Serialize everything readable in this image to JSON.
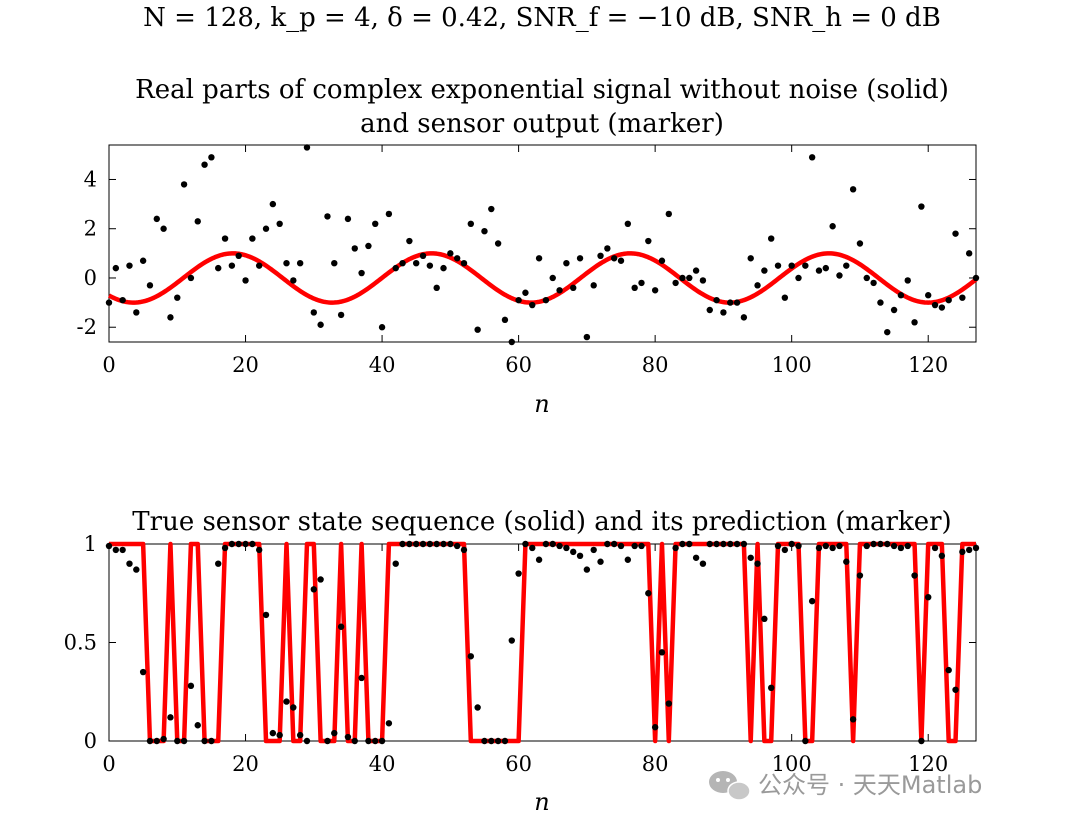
{
  "suptitle": "N = 128, k_p = 4, δ = 0.42, SNR_f = −10 dB, SNR_h = 0 dB",
  "watermark": "公众号 · 天天Matlab",
  "colors": {
    "line": "#ff0000",
    "marker": "#000000",
    "axes": "#000000"
  },
  "chart_data": [
    {
      "type": "line",
      "title_line1": "Real parts of complex exponential signal without noise (solid)",
      "title_line2": "and sensor output (marker)",
      "xlabel": "n",
      "ylabel": "",
      "xlim": [
        0,
        127
      ],
      "ylim": [
        -2.6,
        5.4
      ],
      "xticks": [
        "0",
        "20",
        "40",
        "60",
        "80",
        "100",
        "120"
      ],
      "yticks": [
        "-2",
        "0",
        "2",
        "4"
      ],
      "grid": false,
      "series": [
        {
          "style": "solid",
          "formula_params": {
            "amplitude": 1,
            "period": 29.1,
            "phase_offset_n": 3.6
          }
        },
        {
          "style": "marker",
          "x": [
            0,
            1,
            2,
            3,
            4,
            5,
            6,
            7,
            8,
            9,
            10,
            11,
            12,
            13,
            14,
            15,
            16,
            17,
            18,
            19,
            20,
            21,
            22,
            23,
            24,
            25,
            26,
            27,
            28,
            29,
            30,
            31,
            32,
            33,
            34,
            35,
            36,
            37,
            38,
            39,
            40,
            41,
            42,
            43,
            44,
            45,
            46,
            47,
            48,
            49,
            50,
            51,
            52,
            53,
            54,
            55,
            56,
            57,
            58,
            59,
            60,
            61,
            62,
            63,
            64,
            65,
            66,
            67,
            68,
            69,
            70,
            71,
            72,
            73,
            74,
            75,
            76,
            77,
            78,
            79,
            80,
            81,
            82,
            83,
            84,
            85,
            86,
            87,
            88,
            89,
            90,
            91,
            92,
            93,
            94,
            95,
            96,
            97,
            98,
            99,
            100,
            101,
            102,
            103,
            104,
            105,
            106,
            107,
            108,
            109,
            110,
            111,
            112,
            113,
            114,
            115,
            116,
            117,
            118,
            119,
            120,
            121,
            122,
            123,
            124,
            125,
            126,
            127
          ],
          "y": [
            -1.0,
            0.4,
            -0.9,
            0.5,
            -1.4,
            0.7,
            -0.3,
            2.4,
            2.0,
            -1.6,
            -0.8,
            3.8,
            0.0,
            2.3,
            4.6,
            4.9,
            0.4,
            1.6,
            0.5,
            0.9,
            -0.1,
            1.6,
            0.5,
            2.0,
            3.0,
            2.2,
            0.6,
            -0.1,
            0.6,
            5.3,
            -1.4,
            -1.9,
            2.5,
            0.6,
            -1.5,
            2.4,
            1.2,
            0.2,
            1.3,
            2.2,
            -2.0,
            2.6,
            0.4,
            0.6,
            1.5,
            0.6,
            0.9,
            0.5,
            -0.4,
            0.4,
            1.0,
            0.8,
            0.6,
            2.2,
            -2.1,
            1.9,
            2.8,
            1.4,
            -1.7,
            -2.6,
            -0.9,
            -0.6,
            -1.1,
            0.8,
            -0.9,
            0.0,
            -0.5,
            0.6,
            -0.4,
            0.8,
            -2.4,
            -0.3,
            0.9,
            1.2,
            0.8,
            0.7,
            2.2,
            -0.4,
            -0.2,
            1.5,
            -0.5,
            0.7,
            2.6,
            -0.2,
            0.0,
            0.0,
            0.3,
            -0.1,
            -1.3,
            -0.9,
            -1.4,
            -1.0,
            -1.0,
            -1.6,
            0.8,
            -0.3,
            0.3,
            1.6,
            0.5,
            -0.8,
            0.5,
            0.0,
            0.5,
            4.9,
            0.3,
            0.4,
            2.1,
            0.1,
            0.5,
            3.6,
            1.4,
            0.0,
            -0.2,
            -1.0,
            -2.2,
            -1.3,
            -0.7,
            -0.1,
            -1.8,
            2.9,
            -0.7,
            -1.1,
            -1.2,
            -0.9,
            1.8,
            -0.8,
            1.0,
            0.0
          ]
        }
      ]
    },
    {
      "type": "line",
      "title": "True sensor state sequence (solid) and its prediction (marker)",
      "xlabel": "n",
      "ylabel": "",
      "xlim": [
        0,
        127
      ],
      "ylim": [
        0,
        1
      ],
      "xticks": [
        "0",
        "20",
        "40",
        "60",
        "80",
        "100",
        "120"
      ],
      "yticks": [
        "0",
        "0.5",
        "1"
      ],
      "grid": false,
      "series": [
        {
          "style": "solid",
          "x": [
            0,
            1,
            2,
            3,
            4,
            5,
            6,
            7,
            8,
            9,
            10,
            11,
            12,
            13,
            14,
            15,
            16,
            17,
            18,
            19,
            20,
            21,
            22,
            23,
            24,
            25,
            26,
            27,
            28,
            29,
            30,
            31,
            32,
            33,
            34,
            35,
            36,
            37,
            38,
            39,
            40,
            41,
            42,
            43,
            44,
            45,
            46,
            47,
            48,
            49,
            50,
            51,
            52,
            53,
            54,
            55,
            56,
            57,
            58,
            59,
            60,
            61,
            62,
            63,
            64,
            65,
            66,
            67,
            68,
            69,
            70,
            71,
            72,
            73,
            74,
            75,
            76,
            77,
            78,
            79,
            80,
            81,
            82,
            83,
            84,
            85,
            86,
            87,
            88,
            89,
            90,
            91,
            92,
            93,
            94,
            95,
            96,
            97,
            98,
            99,
            100,
            101,
            102,
            103,
            104,
            105,
            106,
            107,
            108,
            109,
            110,
            111,
            112,
            113,
            114,
            115,
            116,
            117,
            118,
            119,
            120,
            121,
            122,
            123,
            124,
            125,
            126,
            127
          ],
          "y": [
            1,
            1,
            1,
            1,
            1,
            1,
            0,
            0,
            0,
            1,
            0,
            0,
            1,
            1,
            0,
            0,
            0,
            1,
            1,
            1,
            1,
            1,
            1,
            0,
            0,
            0,
            1,
            0,
            0,
            1,
            1,
            0,
            0,
            0,
            1,
            0,
            0,
            1,
            0,
            0,
            0,
            1,
            1,
            1,
            1,
            1,
            1,
            1,
            1,
            1,
            1,
            1,
            1,
            0,
            0,
            0,
            0,
            0,
            0,
            0,
            0,
            1,
            1,
            1,
            1,
            1,
            1,
            1,
            1,
            1,
            1,
            1,
            1,
            1,
            1,
            1,
            1,
            1,
            1,
            1,
            0,
            1,
            0,
            1,
            1,
            1,
            1,
            1,
            1,
            1,
            1,
            1,
            1,
            1,
            0,
            1,
            0,
            0,
            1,
            1,
            1,
            1,
            0,
            0,
            1,
            1,
            1,
            1,
            1,
            0,
            1,
            1,
            1,
            1,
            1,
            1,
            1,
            1,
            1,
            0,
            1,
            1,
            1,
            0,
            0,
            1,
            1,
            1
          ]
        },
        {
          "style": "marker",
          "x": [
            0,
            1,
            2,
            3,
            4,
            5,
            6,
            7,
            8,
            9,
            10,
            11,
            12,
            13,
            14,
            15,
            16,
            17,
            18,
            19,
            20,
            21,
            22,
            23,
            24,
            25,
            26,
            27,
            28,
            29,
            30,
            31,
            32,
            33,
            34,
            35,
            36,
            37,
            38,
            39,
            40,
            41,
            42,
            43,
            44,
            45,
            46,
            47,
            48,
            49,
            50,
            51,
            52,
            53,
            54,
            55,
            56,
            57,
            58,
            59,
            60,
            61,
            62,
            63,
            64,
            65,
            66,
            67,
            68,
            69,
            70,
            71,
            72,
            73,
            74,
            75,
            76,
            77,
            78,
            79,
            80,
            81,
            82,
            83,
            84,
            85,
            86,
            87,
            88,
            89,
            90,
            91,
            92,
            93,
            94,
            95,
            96,
            97,
            98,
            99,
            100,
            101,
            102,
            103,
            104,
            105,
            106,
            107,
            108,
            109,
            110,
            111,
            112,
            113,
            114,
            115,
            116,
            117,
            118,
            119,
            120,
            121,
            122,
            123,
            124,
            125,
            126,
            127
          ],
          "y": [
            0.99,
            0.97,
            0.97,
            0.9,
            0.87,
            0.35,
            0.0,
            0.0,
            0.01,
            0.12,
            0.0,
            0.0,
            0.28,
            0.08,
            0.0,
            0.0,
            0.9,
            0.98,
            1.0,
            1.0,
            1.0,
            1.0,
            0.97,
            0.64,
            0.04,
            0.03,
            0.2,
            0.17,
            0.03,
            0.0,
            0.77,
            0.82,
            0.0,
            0.04,
            0.58,
            0.02,
            0.0,
            0.32,
            0.0,
            0.0,
            0.0,
            0.09,
            0.9,
            1.0,
            1.0,
            1.0,
            1.0,
            1.0,
            1.0,
            1.0,
            1.0,
            0.99,
            0.97,
            0.43,
            0.17,
            0.0,
            0.0,
            0.0,
            0.0,
            0.51,
            0.85,
            1.0,
            0.98,
            0.92,
            1.0,
            1.0,
            0.99,
            0.98,
            0.96,
            0.94,
            0.87,
            0.97,
            0.91,
            1.0,
            1.0,
            0.99,
            0.92,
            0.99,
            0.99,
            0.75,
            0.07,
            0.45,
            0.19,
            0.98,
            1.0,
            1.0,
            0.93,
            0.9,
            1.0,
            1.0,
            1.0,
            1.0,
            1.0,
            1.0,
            0.93,
            0.9,
            0.62,
            0.27,
            0.99,
            0.97,
            1.0,
            0.99,
            0.0,
            0.71,
            0.98,
            0.99,
            0.98,
            0.99,
            0.91,
            0.11,
            0.84,
            0.99,
            1.0,
            1.0,
            1.0,
            0.99,
            0.98,
            0.99,
            0.84,
            0.0,
            0.73,
            0.98,
            0.94,
            0.36,
            0.26,
            0.96,
            0.97,
            0.98
          ]
        }
      ]
    }
  ]
}
